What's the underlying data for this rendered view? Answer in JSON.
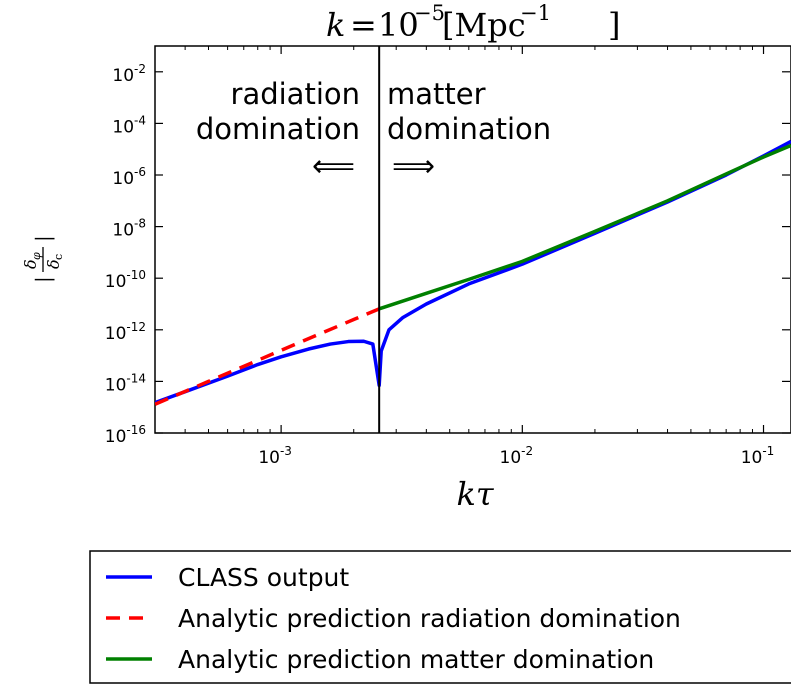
{
  "chart_data": {
    "type": "line",
    "title": "k = 10⁻⁵ [Mpc⁻¹]",
    "xlabel": "kτ",
    "ylabel": "|δφ/δc|",
    "xscale": "log",
    "yscale": "log",
    "xlim": [
      0.0003,
      0.13
    ],
    "ylim": [
      1e-16,
      0.1
    ],
    "x_ticks": [
      {
        "value": 0.001,
        "base": "10",
        "exp": "-3"
      },
      {
        "value": 0.01,
        "base": "10",
        "exp": "-2"
      },
      {
        "value": 0.1,
        "base": "10",
        "exp": "-1"
      }
    ],
    "y_ticks": [
      {
        "value": 1e-16,
        "base": "10",
        "exp": "-16"
      },
      {
        "value": 1e-14,
        "base": "10",
        "exp": "-14"
      },
      {
        "value": 1e-12,
        "base": "10",
        "exp": "-12"
      },
      {
        "value": 1e-10,
        "base": "10",
        "exp": "-10"
      },
      {
        "value": 1e-08,
        "base": "10",
        "exp": "-8"
      },
      {
        "value": 1e-06,
        "base": "10",
        "exp": "-6"
      },
      {
        "value": 0.0001,
        "base": "10",
        "exp": "-4"
      },
      {
        "value": 0.01,
        "base": "10",
        "exp": "-2"
      }
    ],
    "transition_x": 0.00255,
    "annotations": {
      "left_line1": "radiation",
      "left_line2": "domination",
      "left_arrow": "⟸",
      "right_line1": "matter",
      "right_line2": "domination",
      "right_arrow": "⟹"
    },
    "series": [
      {
        "name": "CLASS output",
        "color": "#0000ff",
        "style": "solid",
        "points": [
          [
            0.0003,
            1.5e-15
          ],
          [
            0.0004,
            4e-15
          ],
          [
            0.0006,
            1.6e-14
          ],
          [
            0.0008,
            4.5e-14
          ],
          [
            0.001,
            9e-14
          ],
          [
            0.0013,
            1.8e-13
          ],
          [
            0.0016,
            2.8e-13
          ],
          [
            0.0019,
            3.5e-13
          ],
          [
            0.0022,
            3.6e-13
          ],
          [
            0.0024,
            2.8e-13
          ],
          [
            0.00255,
            7e-15
          ],
          [
            0.0026,
            1.5e-13
          ],
          [
            0.0028,
            1e-12
          ],
          [
            0.0032,
            3e-12
          ],
          [
            0.004,
            1e-11
          ],
          [
            0.006,
            6e-11
          ],
          [
            0.01,
            3.5e-10
          ],
          [
            0.02,
            5.5e-09
          ],
          [
            0.04,
            9e-08
          ],
          [
            0.07,
            1e-06
          ],
          [
            0.1,
            5.5e-06
          ],
          [
            0.13,
            2e-05
          ]
        ]
      },
      {
        "name": "Analytic prediction radiation domination",
        "color": "#ff0000",
        "style": "dashed",
        "points": [
          [
            0.0003,
            1.3e-15
          ],
          [
            0.0005,
            1e-14
          ],
          [
            0.001,
            1.6e-13
          ],
          [
            0.0015,
            8e-13
          ],
          [
            0.002,
            2.5e-12
          ],
          [
            0.00255,
            6.5e-12
          ]
        ]
      },
      {
        "name": "Analytic prediction matter domination",
        "color": "#008000",
        "style": "solid",
        "points": [
          [
            0.00255,
            6.5e-12
          ],
          [
            0.004,
            2.6e-11
          ],
          [
            0.006,
            9e-11
          ],
          [
            0.01,
            4.5e-10
          ],
          [
            0.02,
            6.5e-09
          ],
          [
            0.04,
            1e-07
          ],
          [
            0.07,
            1.1e-06
          ],
          [
            0.1,
            5e-06
          ],
          [
            0.13,
            1.4e-05
          ]
        ]
      }
    ],
    "legend": {
      "placement": "bottom",
      "entries": [
        {
          "label": "CLASS output",
          "color": "#0000ff",
          "style": "solid"
        },
        {
          "label": "Analytic prediction radiation domination",
          "color": "#ff0000",
          "style": "dashed"
        },
        {
          "label": "Analytic prediction matter domination",
          "color": "#008000",
          "style": "solid"
        }
      ]
    }
  }
}
